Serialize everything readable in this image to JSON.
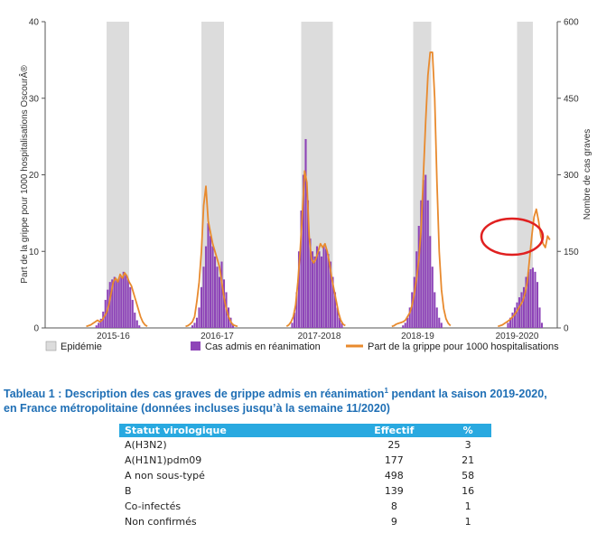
{
  "chart_data": {
    "type": "bar+line",
    "xlabel": "",
    "ylabel_left": "Part de la grippe pour 1000 hospitalisations  OscourÂ®",
    "ylabel_right": "Nombre de cas graves",
    "ylim_left": [
      0,
      40
    ],
    "ylim_right": [
      0,
      600
    ],
    "yticks_left": [
      "0",
      "10",
      "20",
      "30",
      "40"
    ],
    "yticks_right": [
      "0",
      "150",
      "300",
      "450",
      "600"
    ],
    "season_labels": [
      "2015-16",
      "2016-17",
      "2017-2018",
      "2018-19",
      "2019-2020"
    ],
    "legend": {
      "epidemic": "Epidémie",
      "bars": "Cas admis en réanimation",
      "line": "Part de la grippe pour 1000 hospitalisations"
    },
    "colors": {
      "bars": "#8e44b8",
      "line": "#e88a2e",
      "epidemic": "#dcdcdc",
      "highlight": "#e02020"
    },
    "seasons": [
      {
        "label": "2015-16",
        "epidemic_weeks": [
          18,
          28
        ],
        "bars": [
          5,
          10,
          18,
          32,
          55,
          75,
          90,
          95,
          100,
          95,
          98,
          100,
          110,
          105,
          95,
          80,
          55,
          30,
          15,
          5
        ],
        "line": [
          0.2,
          0.3,
          0.4,
          0.6,
          0.8,
          1.0,
          0.8,
          1.0,
          1.5,
          2.0,
          3.0,
          4.5,
          6.0,
          6.5,
          6.0,
          7.0,
          6.5,
          7.2,
          6.8,
          6.0,
          5.5,
          4.5,
          3.5,
          2.5,
          1.5,
          0.8,
          0.4,
          0.2
        ]
      },
      {
        "label": "2016-17",
        "epidemic_weeks": [
          14,
          24
        ],
        "bars": [
          5,
          10,
          20,
          40,
          80,
          120,
          160,
          205,
          180,
          160,
          140,
          120,
          100,
          130,
          95,
          70,
          40,
          20,
          8
        ],
        "line": [
          0.2,
          0.3,
          0.5,
          0.8,
          1.5,
          3.5,
          6.0,
          10.0,
          16.0,
          18.5,
          14.0,
          12.5,
          11.0,
          10.0,
          9.0,
          8.0,
          6.0,
          4.0,
          2.5,
          1.5,
          0.8,
          0.4,
          0.3,
          0.2
        ]
      },
      {
        "label": "2017-2018",
        "epidemic_weeks": [
          13,
          27
        ],
        "bars": [
          10,
          30,
          70,
          150,
          230,
          300,
          370,
          250,
          175,
          150,
          140,
          160,
          150,
          140,
          160,
          155,
          145,
          130,
          100,
          70,
          40,
          20,
          10
        ],
        "line": [
          0.2,
          0.4,
          0.8,
          1.5,
          3.0,
          6.0,
          10.0,
          15.0,
          20.5,
          19.0,
          12.0,
          9.0,
          8.5,
          9.0,
          10.0,
          11.0,
          10.5,
          11.0,
          10.0,
          8.5,
          6.5,
          5.0,
          3.5,
          2.0,
          1.0,
          0.5,
          0.3
        ]
      },
      {
        "label": "2018-19",
        "epidemic_weeks": [
          19,
          27
        ],
        "bars": [
          5,
          10,
          20,
          40,
          70,
          100,
          150,
          200,
          250,
          290,
          300,
          250,
          180,
          120,
          70,
          40,
          20,
          10
        ],
        "line": [
          0.2,
          0.3,
          0.5,
          0.6,
          0.7,
          0.8,
          1.0,
          1.5,
          2.0,
          3.0,
          4.5,
          6.5,
          9.0,
          13.0,
          20.0,
          27.0,
          33.0,
          36.0,
          36.0,
          30.0,
          19.0,
          10.0,
          5.0,
          2.5,
          1.2,
          0.6,
          0.3
        ]
      },
      {
        "label": "2019-2020",
        "epidemic_weeks": [
          21,
          28
        ],
        "bars": [
          10,
          20,
          30,
          40,
          50,
          60,
          70,
          80,
          100,
          110,
          115,
          118,
          110,
          90,
          40,
          10
        ],
        "line": [
          0.2,
          0.3,
          0.4,
          0.6,
          0.8,
          1.0,
          1.3,
          1.6,
          2.0,
          2.5,
          3.0,
          3.5,
          4.5,
          6.0,
          9.0,
          12.0,
          14.5,
          15.5,
          14.0,
          12.0,
          11.0,
          10.5,
          12.0,
          11.5
        ]
      }
    ]
  },
  "table": {
    "caption_line1_a": "Tableau 1 : Description des cas graves de grippe admis en réanimation",
    "caption_sup": "1",
    "caption_line1_b": " pendant la saison 2019-2020,",
    "caption_line2": "en France métropolitaine (données incluses jusqu’à la semaine 11/2020)",
    "headers": [
      "Statut virologique",
      "Effectif",
      "%"
    ],
    "rows": [
      [
        "A(H3N2)",
        "25",
        "3"
      ],
      [
        "A(H1N1)pdm09",
        "177",
        "21"
      ],
      [
        "A non sous-typé",
        "498",
        "58"
      ],
      [
        "B",
        "139",
        "16"
      ],
      [
        "Co-infectés",
        "8",
        "1"
      ],
      [
        "Non confirmés",
        "9",
        "1"
      ]
    ]
  }
}
